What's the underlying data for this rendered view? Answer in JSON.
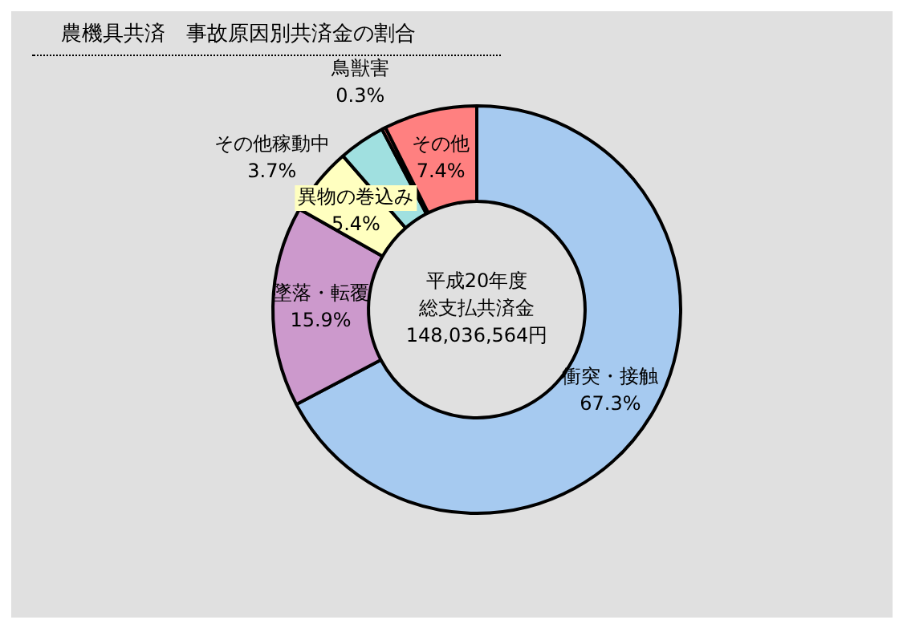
{
  "chart_data": {
    "type": "donut",
    "title": "農機具共済　事故原因別共済金の割合",
    "categories": [
      "衝突・接触",
      "墜落・転覆",
      "異物の巻込み",
      "その他稼動中",
      "鳥獣害",
      "その他"
    ],
    "values": [
      67.3,
      15.9,
      5.4,
      3.7,
      0.3,
      7.4
    ],
    "colors": [
      "#a6caf0",
      "#cc99cc",
      "#ffffc0",
      "#a0e0e0",
      "#ff8080",
      "#ff8080"
    ],
    "annotations": [
      "平成20年度",
      "総支払共済金",
      "148,036,564円"
    ],
    "value_labels": [
      "67.3%",
      "15.9%",
      "5.4%",
      "3.7%",
      "0.3%",
      "7.4%"
    ],
    "legend": false
  }
}
